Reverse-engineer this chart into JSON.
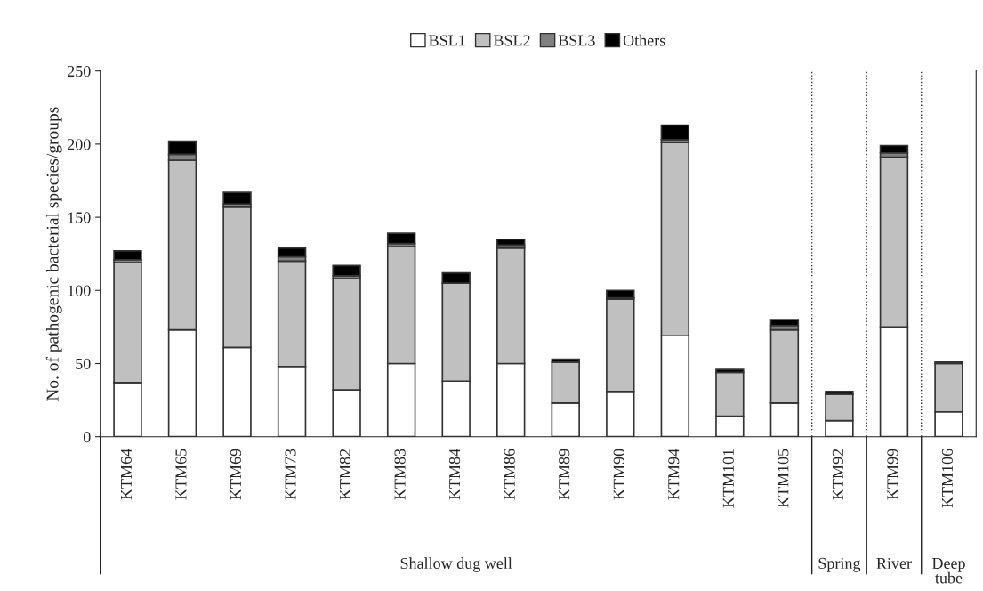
{
  "chart_data": {
    "type": "bar",
    "stacked": true,
    "ylabel": "No. of pathogenic bacterial species/groups",
    "categories": [
      "KTM64",
      "KTM65",
      "KTM69",
      "KTM73",
      "KTM82",
      "KTM83",
      "KTM84",
      "KTM86",
      "KTM89",
      "KTM90",
      "KTM94",
      "KTM101",
      "KTM105",
      "KTM92",
      "KTM99",
      "KTM106"
    ],
    "series": [
      {
        "name": "BSL1",
        "color": "#ffffff",
        "values": [
          37,
          73,
          61,
          48,
          32,
          50,
          38,
          50,
          23,
          31,
          69,
          14,
          23,
          11,
          75,
          17
        ]
      },
      {
        "name": "BSL2",
        "color": "#c0c0c0",
        "values": [
          82,
          116,
          96,
          72,
          76,
          80,
          67,
          79,
          28,
          63,
          132,
          30,
          50,
          18,
          116,
          33
        ]
      },
      {
        "name": "BSL3",
        "color": "#808080",
        "values": [
          2,
          4,
          2,
          3,
          2,
          2,
          0,
          2,
          0,
          1,
          2,
          0,
          3,
          0,
          3,
          0
        ]
      },
      {
        "name": "Others",
        "color": "#000000",
        "values": [
          6,
          9,
          8,
          6,
          7,
          7,
          7,
          4,
          2,
          5,
          10,
          2,
          4,
          2,
          5,
          1
        ]
      }
    ],
    "ylim": [
      0,
      250
    ],
    "yticks": [
      0,
      50,
      100,
      150,
      200,
      250
    ],
    "annotations": [
      "Shallow dug well",
      "Spring",
      "River",
      "Deep\ntube"
    ],
    "legend": "top",
    "grid": false
  }
}
